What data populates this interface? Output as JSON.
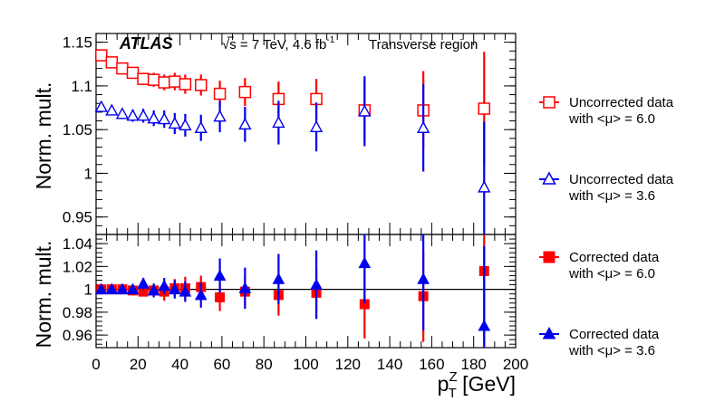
{
  "chart_data": [
    {
      "type": "scatter",
      "panel": "top",
      "ylabel": "Norm. mult.",
      "xlim": [
        0,
        200
      ],
      "ylim": [
        0.93,
        1.16
      ],
      "yticks": [
        0.95,
        1,
        1.05,
        1.1,
        1.15
      ],
      "yticklabels": [
        "0.95",
        "1",
        "1.05",
        "1.1",
        "1.15"
      ],
      "annotations": {
        "experiment": "ATLAS",
        "energy": "√s = 7 TeV, 4.6 fb",
        "energy_sup": "-1",
        "region": "Transverse region"
      },
      "series": [
        {
          "name": "Uncorrected data with <μ> = 6.0",
          "legend_line1": "Uncorrected data",
          "legend_line2": "with <μ> = 6.0",
          "color": "#ff0000",
          "marker": "open-square",
          "x": [
            2.5,
            7.5,
            12.5,
            17.5,
            22.5,
            27.5,
            32.5,
            37.5,
            42.5,
            50,
            59,
            71,
            87,
            105,
            128,
            156,
            185
          ],
          "y": [
            1.135,
            1.127,
            1.12,
            1.115,
            1.108,
            1.107,
            1.104,
            1.105,
            1.102,
            1.101,
            1.091,
            1.093,
            1.085,
            1.085,
            1.072,
            1.072,
            1.074
          ],
          "err": [
            0.003,
            0.004,
            0.005,
            0.006,
            0.007,
            0.008,
            0.009,
            0.01,
            0.011,
            0.012,
            0.015,
            0.016,
            0.02,
            0.023,
            0.035,
            0.045,
            0.065
          ]
        },
        {
          "name": "Uncorrected data with <μ> = 3.6",
          "legend_line1": "Uncorrected data",
          "legend_line2": "with <μ> = 3.6",
          "color": "#0000ee",
          "marker": "open-triangle",
          "x": [
            2.5,
            7.5,
            12.5,
            17.5,
            22.5,
            27.5,
            32.5,
            37.5,
            42.5,
            50,
            59,
            71,
            87,
            105,
            128,
            156,
            185
          ],
          "y": [
            1.076,
            1.072,
            1.068,
            1.066,
            1.066,
            1.063,
            1.062,
            1.057,
            1.055,
            1.052,
            1.065,
            1.056,
            1.058,
            1.053,
            1.071,
            1.052,
            0.984
          ],
          "err": [
            0.004,
            0.005,
            0.006,
            0.007,
            0.008,
            0.009,
            0.01,
            0.012,
            0.013,
            0.015,
            0.018,
            0.02,
            0.025,
            0.028,
            0.04,
            0.05,
            0.075
          ]
        }
      ]
    },
    {
      "type": "scatter",
      "panel": "bottom",
      "ylabel": "Norm. mult.",
      "xlabel": "p",
      "xlabel_sup": "Z",
      "xlabel_sub": "T",
      "xlabel_unit": " [GeV]",
      "xlim": [
        0,
        200
      ],
      "ylim": [
        0.949,
        1.048
      ],
      "xticks": [
        0,
        20,
        40,
        60,
        80,
        100,
        120,
        140,
        160,
        180,
        200
      ],
      "xticklabels": [
        "0",
        "20",
        "40",
        "60",
        "80",
        "100",
        "120",
        "140",
        "160",
        "180",
        "200"
      ],
      "yticks": [
        0.96,
        0.98,
        1,
        1.02,
        1.04
      ],
      "yticklabels": [
        "0.96",
        "0.98",
        "1",
        "1.02",
        "1.04"
      ],
      "reference_line": 1.0,
      "series": [
        {
          "name": "Corrected data with <μ> = 6.0",
          "legend_line1": "Corrected data",
          "legend_line2": "with <μ> = 6.0",
          "color": "#ff0000",
          "marker": "filled-square",
          "x": [
            2.5,
            7.5,
            12.5,
            17.5,
            22.5,
            27.5,
            32.5,
            37.5,
            42.5,
            50,
            59,
            71,
            87,
            105,
            128,
            156,
            185
          ],
          "y": [
            1.0,
            1.0,
            1.0,
            0.999,
            0.998,
            0.999,
            0.998,
            1.001,
            1.001,
            1.002,
            0.993,
            0.998,
            0.995,
            0.997,
            0.987,
            0.994,
            1.016
          ],
          "err": [
            0.002,
            0.003,
            0.003,
            0.004,
            0.004,
            0.006,
            0.008,
            0.008,
            0.01,
            0.01,
            0.012,
            0.012,
            0.018,
            0.022,
            0.03,
            0.04,
            0.065
          ]
        },
        {
          "name": "Corrected data with <μ> = 3.6",
          "legend_line1": "Corrected data",
          "legend_line2": "with <μ> = 3.6",
          "color": "#0000ee",
          "marker": "filled-triangle",
          "x": [
            2.5,
            7.5,
            12.5,
            17.5,
            22.5,
            27.5,
            32.5,
            37.5,
            42.5,
            50,
            59,
            71,
            87,
            105,
            128,
            156,
            185
          ],
          "y": [
            1.0,
            1.0,
            1.0,
            1.0,
            1.005,
            0.999,
            1.003,
            1.0,
            0.998,
            0.995,
            1.012,
            1.001,
            1.009,
            1.004,
            1.023,
            1.009,
            0.968
          ],
          "err": [
            0.003,
            0.003,
            0.004,
            0.004,
            0.005,
            0.006,
            0.007,
            0.008,
            0.009,
            0.011,
            0.015,
            0.018,
            0.022,
            0.03,
            0.035,
            0.045,
            0.07
          ]
        }
      ]
    }
  ]
}
